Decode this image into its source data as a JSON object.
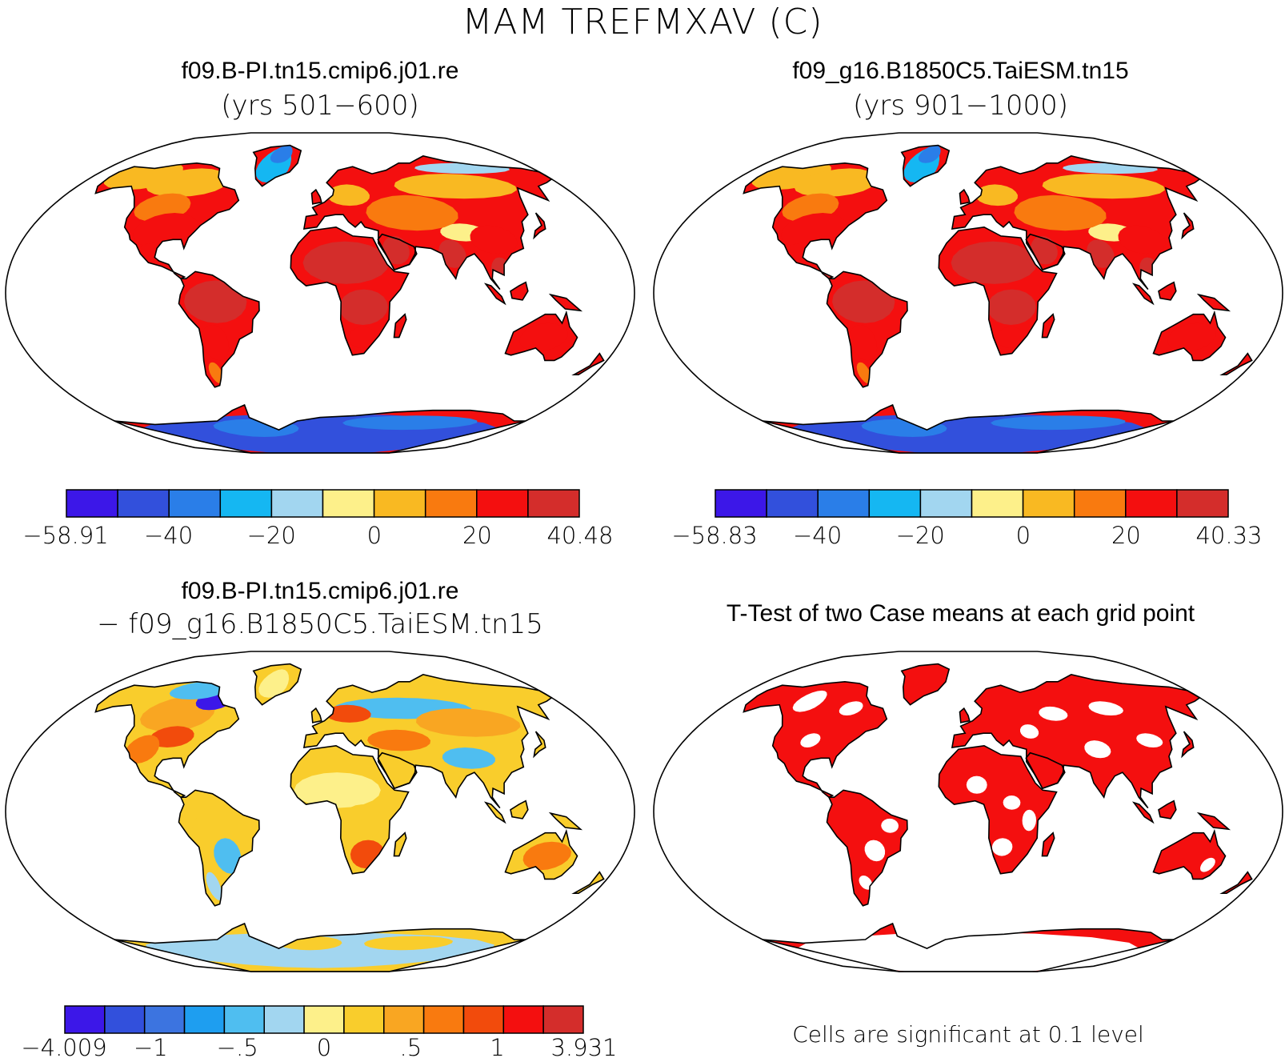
{
  "figure": {
    "title": "MAM TREFMXAV (C)"
  },
  "panels": [
    {
      "id": "case1",
      "title": "f09.B-PI.tn15.cmip6.j01.re",
      "subtitle": "(yrs 501−600)",
      "colorbar": {
        "colors": [
          "#3c17e8",
          "#3250dc",
          "#2a7ee8",
          "#15b7f2",
          "#a2d6f0",
          "#fdf08a",
          "#f9b922",
          "#f97a0f",
          "#f40f0f",
          "#d42d2b"
        ],
        "labels": [
          "−58.91",
          "−40",
          "−20",
          "0",
          "20",
          "40.48"
        ]
      }
    },
    {
      "id": "case2",
      "title": "f09_g16.B1850C5.TaiESM.tn15",
      "subtitle": "(yrs 901−1000)",
      "colorbar": {
        "colors": [
          "#3c17e8",
          "#3250dc",
          "#2a7ee8",
          "#15b7f2",
          "#a2d6f0",
          "#fdf08a",
          "#f9b922",
          "#f97a0f",
          "#f40f0f",
          "#d42d2b"
        ],
        "labels": [
          "−58.83",
          "−40",
          "−20",
          "0",
          "20",
          "40.33"
        ]
      }
    },
    {
      "id": "difference",
      "title": "f09.B-PI.tn15.cmip6.j01.re",
      "subtitle": "− f09_g16.B1850C5.TaiESM.tn15",
      "colorbar": {
        "colors": [
          "#3c17e8",
          "#3250dc",
          "#3c74e0",
          "#1e9ef0",
          "#4fbef0",
          "#a2d6f0",
          "#fdf08a",
          "#f9cd2c",
          "#f9a622",
          "#f97a0f",
          "#f24b0c",
          "#f40f0f",
          "#d42d2b"
        ],
        "labels": [
          "−4.009",
          "−1",
          "−.5",
          "0",
          ".5",
          "1",
          "3.931"
        ]
      }
    },
    {
      "id": "ttest",
      "title": "T-Test of two Case means at each grid point",
      "note": "Cells are significant at 0.1 level"
    }
  ]
}
